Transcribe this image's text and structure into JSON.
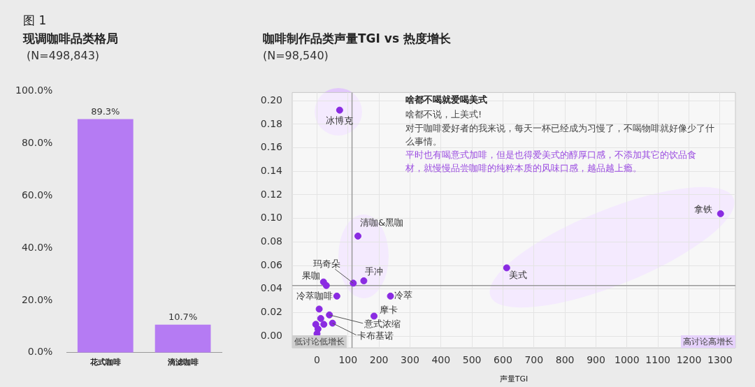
{
  "chart_data": [
    {
      "type": "bar",
      "title": "现调咖啡品类格局",
      "subtitle": " (N=498,843)",
      "annotations": [
        "图 1"
      ],
      "categories": [
        "花式咖啡",
        "滴滤咖啡"
      ],
      "values": [
        89.3,
        10.7
      ],
      "value_labels": [
        "89.3%",
        "10.7%"
      ],
      "color": "#b57bf3",
      "ylim": [
        0,
        100
      ],
      "yticks": [
        {
          "value": 0,
          "label": "0.0%"
        },
        {
          "value": 20,
          "label": "20.0%"
        },
        {
          "value": 40,
          "label": "40.0%"
        },
        {
          "value": 60,
          "label": "60.0%"
        },
        {
          "value": 80,
          "label": "80.0%"
        },
        {
          "value": 100,
          "label": "100.0%"
        }
      ],
      "grid": false
    },
    {
      "type": "scatter",
      "title": "咖啡制作品类声量TGI vs 热度增长",
      "subtitle": "(N=98,540)",
      "xlabel": "声量TGI",
      "annotations": [
        "啥都不喝就爱喝美式",
        "啥都不说，上美式!",
        "对于咖啡爱好者的我来说，每天一杯已经成为习慢了，不喝物啡就好像少了什么事情。",
        "平时也有喝意式加啡，但是也得爱美式的醇厚口感，不添加其它的饮品食材，就慢慢品尝咖啡的纯粹本质的风味口感，越品越上瘾。",
        "低讨论低增长",
        "高讨论高增长"
      ],
      "x": [
        73,
        132,
        117,
        151,
        21,
        30,
        64,
        237,
        184,
        40,
        50,
        7,
        12,
        22,
        -4,
        3,
        0,
        612,
        1302
      ],
      "values": [
        0.192,
        0.085,
        0.045,
        0.047,
        0.046,
        0.043,
        0.034,
        0.034,
        0.017,
        0.018,
        0.011,
        0.023,
        0.015,
        0.01,
        0.01,
        0.006,
        0.002,
        0.058,
        0.104
      ],
      "value_labels": [
        "冰博克",
        "清咖&黑咖",
        "玛奇朵",
        "手冲",
        "果咖",
        null,
        "冷萃咖啡",
        "冷萃",
        "摩卡",
        "意式浓缩",
        "卡布基诺",
        null,
        null,
        null,
        null,
        null,
        null,
        "美式",
        "拿铁"
      ],
      "color": "#8a2be2",
      "marker": "circle",
      "xlim": [
        -80,
        1350
      ],
      "xticks": [
        0,
        100,
        200,
        300,
        400,
        500,
        600,
        700,
        800,
        900,
        1000,
        1100,
        1200,
        1300
      ],
      "ylim": [
        -0.01,
        0.207
      ],
      "yticks": [
        {
          "value": 0,
          "label": "0.00"
        },
        {
          "value": 0.02,
          "label": "0.02"
        },
        {
          "value": 0.04,
          "label": "0.04"
        },
        {
          "value": 0.06,
          "label": "0.06"
        },
        {
          "value": 0.08,
          "label": "0.08"
        },
        {
          "value": 0.1,
          "label": "0.10"
        },
        {
          "value": 0.12,
          "label": "0.12"
        },
        {
          "value": 0.14,
          "label": "0.14"
        },
        {
          "value": 0.16,
          "label": "0.16"
        },
        {
          "value": 0.18,
          "label": "0.18"
        },
        {
          "value": 0.2,
          "label": "0.20"
        }
      ],
      "ref_lines": [
        {
          "axis": "x",
          "value": 113,
          "color": "#9a9a9a"
        },
        {
          "axis": "y",
          "value": 0.043,
          "color": "#9a9a9a"
        }
      ],
      "grid": true
    }
  ]
}
